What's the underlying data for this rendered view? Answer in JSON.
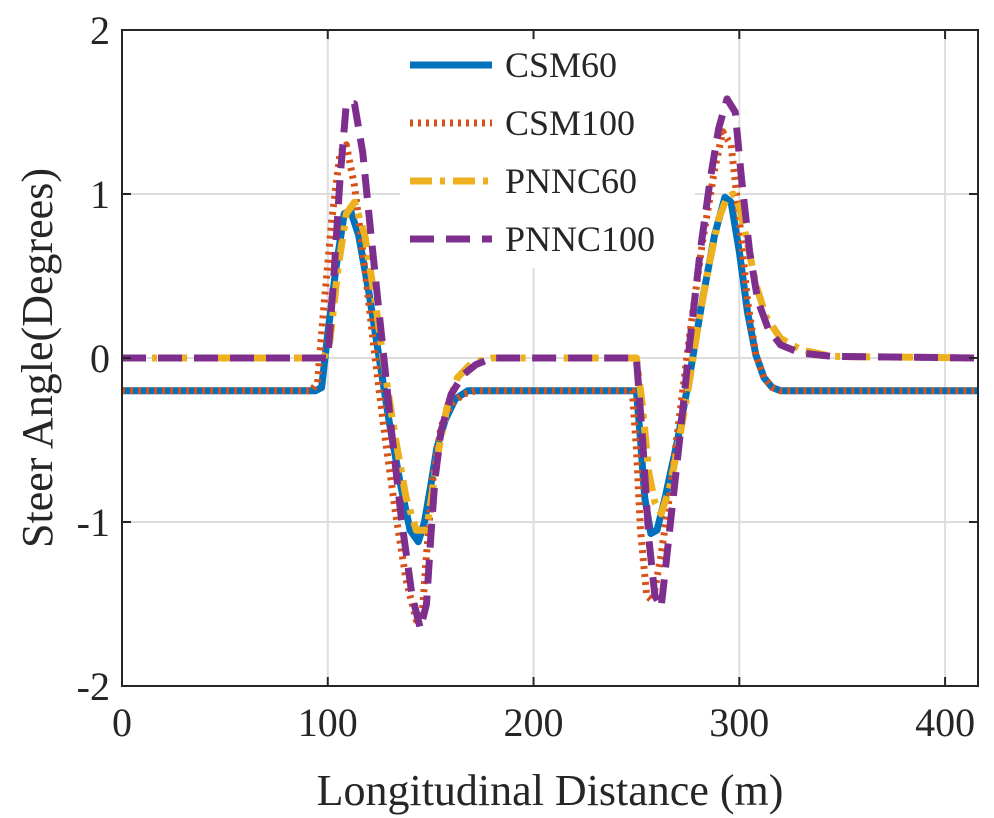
{
  "chart_data": {
    "type": "line",
    "title": "",
    "xlabel": "Longitudinal Distance (m)",
    "ylabel": "Steer Angle(Degrees)",
    "xlim": [
      0,
      416
    ],
    "ylim": [
      -2,
      2
    ],
    "xticks": [
      0,
      100,
      200,
      300,
      400
    ],
    "yticks": [
      -2,
      -1,
      0,
      1,
      2
    ],
    "xtick_labels": [
      "0",
      "100",
      "200",
      "300",
      "400"
    ],
    "ytick_labels": [
      "-2",
      "-1",
      "0",
      "1",
      "2"
    ],
    "grid": true,
    "legend_position": "top-center",
    "series": [
      {
        "name": "CSM60",
        "color": "#0072BD",
        "style": "solid",
        "x": [
          0,
          94,
          97,
          100,
          104,
          108,
          111,
          115,
          120,
          125,
          130,
          135,
          140,
          144,
          147,
          150,
          153,
          157,
          162,
          168,
          250,
          252,
          254,
          257,
          260,
          264,
          270,
          276,
          282,
          288,
          293,
          296,
          300,
          304,
          308,
          312,
          316,
          320,
          416
        ],
        "y": [
          -0.2,
          -0.2,
          -0.18,
          0.15,
          0.55,
          0.88,
          0.9,
          0.75,
          0.4,
          0.0,
          -0.4,
          -0.75,
          -1.05,
          -1.12,
          -1.0,
          -0.78,
          -0.55,
          -0.38,
          -0.25,
          -0.2,
          -0.2,
          -0.5,
          -0.85,
          -1.07,
          -1.05,
          -0.85,
          -0.5,
          -0.1,
          0.35,
          0.75,
          0.98,
          0.95,
          0.65,
          0.28,
          0.02,
          -0.12,
          -0.18,
          -0.2,
          -0.2
        ]
      },
      {
        "name": "CSM100",
        "color": "#D95319",
        "style": "dotted",
        "x": [
          0,
          92,
          95,
          98,
          102,
          106,
          109,
          113,
          118,
          123,
          128,
          133,
          138,
          143,
          146,
          148,
          151,
          155,
          160,
          166,
          172,
          248,
          250,
          252,
          255,
          258,
          262,
          266,
          270,
          276,
          282,
          288,
          292,
          296,
          300,
          304,
          308,
          312,
          316,
          320,
          416
        ],
        "y": [
          -0.2,
          -0.2,
          -0.15,
          0.3,
          0.85,
          1.25,
          1.3,
          1.05,
          0.55,
          0.0,
          -0.5,
          -0.95,
          -1.35,
          -1.6,
          -1.55,
          -1.2,
          -0.75,
          -0.42,
          -0.28,
          -0.22,
          -0.2,
          -0.2,
          -0.55,
          -1.05,
          -1.45,
          -1.48,
          -1.2,
          -0.85,
          -0.45,
          0.15,
          0.7,
          1.15,
          1.38,
          1.3,
          0.85,
          0.35,
          0.02,
          -0.12,
          -0.18,
          -0.2,
          -0.2
        ]
      },
      {
        "name": "PNNC60",
        "color": "#EDB120",
        "style": "dashdot",
        "x": [
          0,
          98,
          101,
          105,
          109,
          113,
          118,
          123,
          128,
          133,
          138,
          143,
          148,
          151,
          154,
          158,
          163,
          170,
          180,
          195,
          210,
          230,
          250,
          253,
          256,
          259,
          262,
          266,
          270,
          275,
          280,
          285,
          290,
          294,
          297,
          300,
          304,
          308,
          313,
          320,
          330,
          345,
          416
        ],
        "y": [
          0.0,
          0.0,
          0.1,
          0.55,
          0.88,
          0.95,
          0.75,
          0.35,
          -0.1,
          -0.5,
          -0.85,
          -1.05,
          -1.05,
          -0.8,
          -0.55,
          -0.3,
          -0.12,
          -0.03,
          0.0,
          0.0,
          0.0,
          0.0,
          0.0,
          -0.3,
          -0.7,
          -0.88,
          -0.95,
          -0.8,
          -0.55,
          -0.2,
          0.2,
          0.55,
          0.85,
          0.98,
          1.0,
          0.92,
          0.7,
          0.45,
          0.25,
          0.12,
          0.05,
          0.01,
          0.0
        ]
      },
      {
        "name": "PNNC100",
        "color": "#7E2F8E",
        "style": "dashed",
        "x": [
          0,
          100,
          103,
          106,
          109,
          113,
          117,
          121,
          126,
          131,
          136,
          141,
          145,
          148,
          150,
          152,
          155,
          160,
          166,
          172,
          180,
          195,
          250,
          253,
          256,
          259,
          262,
          264,
          267,
          271,
          276,
          281,
          286,
          290,
          294,
          298,
          301,
          305,
          309,
          314,
          320,
          330,
          345,
          416
        ],
        "y": [
          0.0,
          0.0,
          0.5,
          1.1,
          1.55,
          1.55,
          1.25,
          0.75,
          0.15,
          -0.45,
          -1.0,
          -1.45,
          -1.65,
          -1.5,
          -1.1,
          -0.75,
          -0.45,
          -0.22,
          -0.1,
          -0.04,
          0.0,
          0.0,
          0.0,
          -0.5,
          -1.1,
          -1.45,
          -1.52,
          -1.3,
          -0.95,
          -0.5,
          0.1,
          0.65,
          1.1,
          1.4,
          1.58,
          1.5,
          1.1,
          0.65,
          0.35,
          0.18,
          0.08,
          0.03,
          0.01,
          0.0
        ]
      }
    ]
  }
}
